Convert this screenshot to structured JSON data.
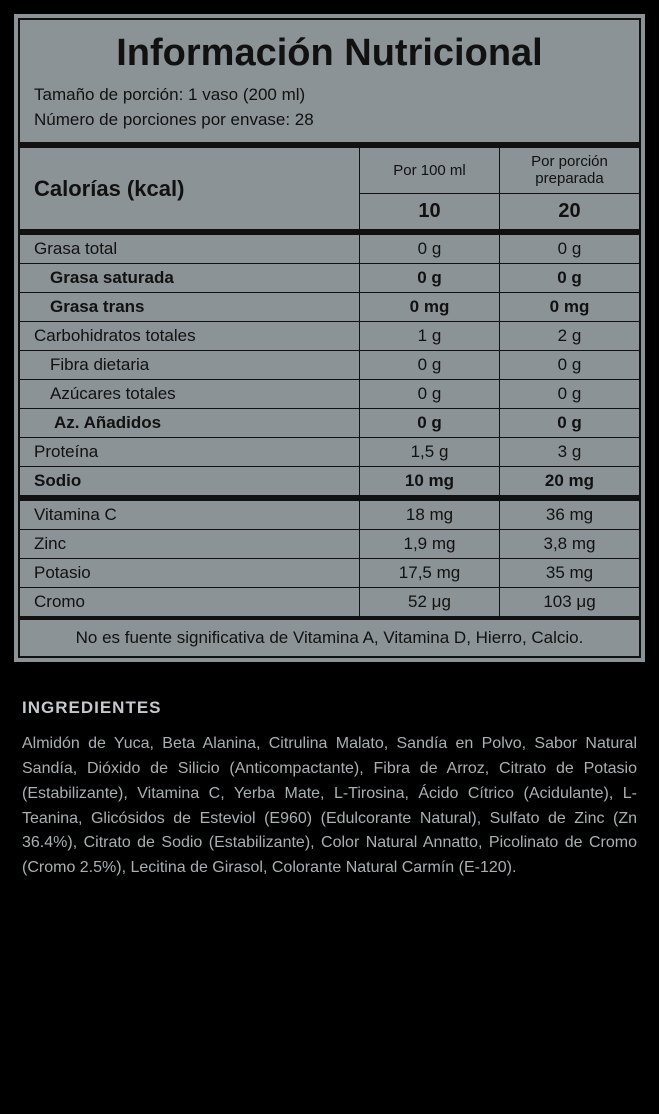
{
  "title": "Información Nutricional",
  "serving_size": "Tamaño de porción: 1 vaso (200 ml)",
  "servings_per_container": "Número de porciones por envase: 28",
  "calories_label": "Calorías (kcal)",
  "col1_header": "Por 100 ml",
  "col2_header_line1": "Por porción",
  "col2_header_line2": "preparada",
  "cal_per100": "10",
  "cal_perporcion": "20",
  "rows_main": [
    {
      "label": "Grasa total",
      "v1": "0 g",
      "v2": "0 g",
      "bold": false,
      "indent": 0
    },
    {
      "label": "Grasa saturada",
      "v1": "0 g",
      "v2": "0 g",
      "bold": true,
      "indent": 1
    },
    {
      "label": "Grasa trans",
      "v1": "0 mg",
      "v2": "0 mg",
      "bold": true,
      "indent": 1
    },
    {
      "label": "Carbohidratos totales",
      "v1": "1 g",
      "v2": "2 g",
      "bold": false,
      "indent": 0
    },
    {
      "label": "Fibra dietaria",
      "v1": "0 g",
      "v2": "0 g",
      "bold": false,
      "indent": 1
    },
    {
      "label": "Azúcares totales",
      "v1": "0 g",
      "v2": "0 g",
      "bold": false,
      "indent": 1
    },
    {
      "label": "Az. Añadidos",
      "v1": "0 g",
      "v2": "0 g",
      "bold": true,
      "indent": 2
    },
    {
      "label": "Proteína",
      "v1": "1,5 g",
      "v2": "3 g",
      "bold": false,
      "indent": 0
    },
    {
      "label": "Sodio",
      "v1": "10 mg",
      "v2": "20 mg",
      "bold": true,
      "indent": 0
    }
  ],
  "rows_vitamins": [
    {
      "label": "Vitamina C",
      "v1": "18 mg",
      "v2": "36 mg"
    },
    {
      "label": "Zinc",
      "v1": "1,9 mg",
      "v2": "3,8 mg"
    },
    {
      "label": "Potasio",
      "v1": "17,5 mg",
      "v2": "35 mg"
    },
    {
      "label": "Cromo",
      "v1": "52 μg",
      "v2": "103 μg"
    }
  ],
  "footnote": "No es fuente significativa de Vitamina A, Vitamina D, Hierro, Calcio.",
  "ingredients_title": "INGREDIENTES",
  "ingredients_body": "Almidón de Yuca, Beta Alanina, Citrulina Malato, Sandía en Polvo, Sabor Natural Sandía, Dióxido de Silicio (Anticompactante), Fibra de Arroz, Citrato de Potasio (Estabilizante), Vitamina C, Yerba Mate, L-Tirosina, Ácido Cítrico (Acidulante), L-Teanina, Glicósidos de Esteviol (E960) (Edulcorante Natural), Sulfato de Zinc (Zn 36.4%), Citrato de Sodio (Estabilizante), Color Natural Annatto, Picolinato de Cromo (Cromo 2.5%), Lecitina de Girasol, Colorante Natural Carmín (E-120)."
}
